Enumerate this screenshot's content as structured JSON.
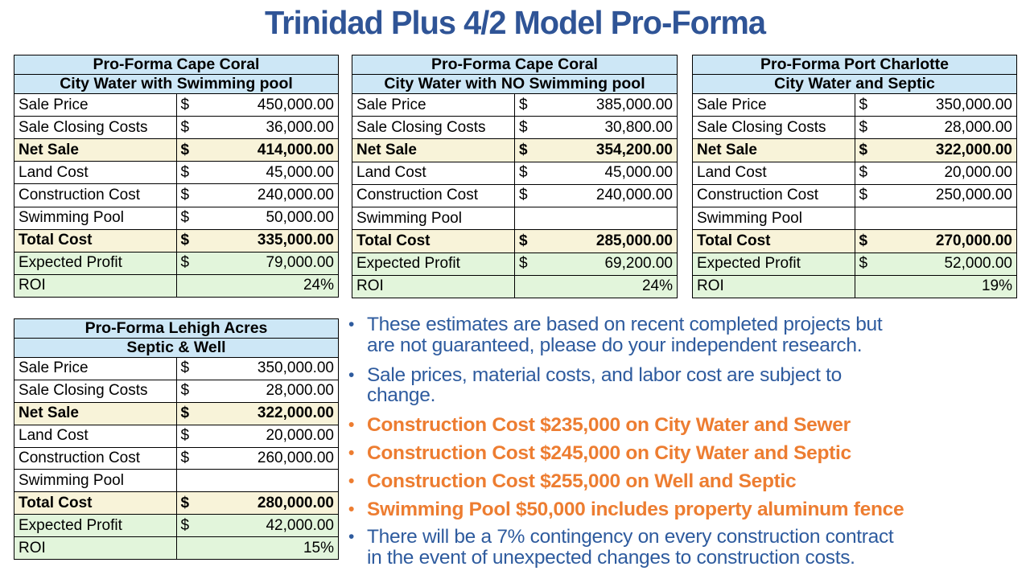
{
  "title": "Trinidad Plus 4/2 Model Pro-Forma",
  "colors": {
    "title_blue": "#2F5496",
    "note_blue": "#2E5B9E",
    "note_orange": "#ED7D31",
    "table_header_fill": "#CDE7F6",
    "table_subtotal_fill": "#F8F3D9",
    "table_profit_fill": "#E2F5DB",
    "table_border": "#000000"
  },
  "tables": [
    {
      "title": "Pro-Forma Cape Coral",
      "subtitle": "City Water with Swimming pool",
      "rows": [
        {
          "label": "Sale Price",
          "currency": "$",
          "value": "450,000.00",
          "style": "plain"
        },
        {
          "label": "Sale Closing Costs",
          "currency": "$",
          "value": "36,000.00",
          "style": "plain"
        },
        {
          "label": "Net Sale",
          "currency": "$",
          "value": "414,000.00",
          "style": "subtotal"
        },
        {
          "label": "Land Cost",
          "currency": "$",
          "value": "45,000.00",
          "style": "plain"
        },
        {
          "label": "Construction Cost",
          "currency": "$",
          "value": "240,000.00",
          "style": "plain"
        },
        {
          "label": "Swimming Pool",
          "currency": "$",
          "value": "50,000.00",
          "style": "plain"
        },
        {
          "label": "Total Cost",
          "currency": "$",
          "value": "335,000.00",
          "style": "subtotal"
        },
        {
          "label": "Expected Profit",
          "currency": "$",
          "value": "79,000.00",
          "style": "profit"
        },
        {
          "label": "ROI",
          "currency": "",
          "value": "24%",
          "style": "roi"
        }
      ]
    },
    {
      "title": "Pro-Forma Cape Coral",
      "subtitle": "City Water with NO Swimming pool",
      "rows": [
        {
          "label": "Sale Price",
          "currency": "$",
          "value": "385,000.00",
          "style": "plain"
        },
        {
          "label": "Sale Closing Costs",
          "currency": "$",
          "value": "30,800.00",
          "style": "plain"
        },
        {
          "label": "Net Sale",
          "currency": "$",
          "value": "354,200.00",
          "style": "subtotal"
        },
        {
          "label": "Land Cost",
          "currency": "$",
          "value": "45,000.00",
          "style": "plain"
        },
        {
          "label": "Construction Cost",
          "currency": "$",
          "value": "240,000.00",
          "style": "plain"
        },
        {
          "label": "Swimming Pool",
          "currency": "",
          "value": "",
          "style": "plain"
        },
        {
          "label": "Total Cost",
          "currency": "$",
          "value": "285,000.00",
          "style": "subtotal"
        },
        {
          "label": "Expected Profit",
          "currency": "$",
          "value": "69,200.00",
          "style": "profit"
        },
        {
          "label": "ROI",
          "currency": "",
          "value": "24%",
          "style": "roi"
        }
      ]
    },
    {
      "title": "Pro-Forma Port Charlotte",
      "subtitle": "City Water and Septic",
      "rows": [
        {
          "label": "Sale Price",
          "currency": "$",
          "value": "350,000.00",
          "style": "plain"
        },
        {
          "label": "Sale Closing Costs",
          "currency": "$",
          "value": "28,000.00",
          "style": "plain"
        },
        {
          "label": "Net Sale",
          "currency": "$",
          "value": "322,000.00",
          "style": "subtotal"
        },
        {
          "label": "Land Cost",
          "currency": "$",
          "value": "20,000.00",
          "style": "plain"
        },
        {
          "label": "Construction Cost",
          "currency": "$",
          "value": "250,000.00",
          "style": "plain"
        },
        {
          "label": "Swimming Pool",
          "currency": "",
          "value": "",
          "style": "plain"
        },
        {
          "label": "Total Cost",
          "currency": "$",
          "value": "270,000.00",
          "style": "subtotal"
        },
        {
          "label": "Expected Profit",
          "currency": "$",
          "value": "52,000.00",
          "style": "profit"
        },
        {
          "label": "ROI",
          "currency": "",
          "value": "19%",
          "style": "roi"
        }
      ]
    },
    {
      "title": "Pro-Forma Lehigh Acres",
      "subtitle": "Septic & Well",
      "rows": [
        {
          "label": "Sale Price",
          "currency": "$",
          "value": "350,000.00",
          "style": "plain"
        },
        {
          "label": "Sale Closing Costs",
          "currency": "$",
          "value": "28,000.00",
          "style": "plain"
        },
        {
          "label": "Net Sale",
          "currency": "$",
          "value": "322,000.00",
          "style": "subtotal"
        },
        {
          "label": "Land Cost",
          "currency": "$",
          "value": "20,000.00",
          "style": "plain"
        },
        {
          "label": "Construction Cost",
          "currency": "$",
          "value": "260,000.00",
          "style": "plain"
        },
        {
          "label": "Swimming Pool",
          "currency": "",
          "value": "",
          "style": "plain"
        },
        {
          "label": "Total Cost",
          "currency": "$",
          "value": "280,000.00",
          "style": "subtotal"
        },
        {
          "label": "Expected Profit",
          "currency": "$",
          "value": "42,000.00",
          "style": "profit"
        },
        {
          "label": "ROI",
          "currency": "",
          "value": "15%",
          "style": "roi"
        }
      ]
    }
  ],
  "notes": {
    "bullet_glyph": "•",
    "items": [
      {
        "text": "These estimates are based on recent completed projects but\nare not guaranteed, please do your independent research.",
        "color": "blue"
      },
      {
        "text": "Sale prices, material costs, and labor cost are subject to\nchange.",
        "color": "blue"
      },
      {
        "text": "Construction Cost $235,000 on City Water and Sewer",
        "color": "orange"
      },
      {
        "text": "Construction Cost $245,000 on City Water and Septic",
        "color": "orange"
      },
      {
        "text": "Construction Cost $255,000 on Well and Septic",
        "color": "orange"
      },
      {
        "text": "Swimming Pool $50,000 includes property aluminum fence",
        "color": "orange"
      },
      {
        "text": "There will be a 7% contingency on every construction contract\nin the event of unexpected changes to construction costs.",
        "color": "blue"
      }
    ]
  }
}
